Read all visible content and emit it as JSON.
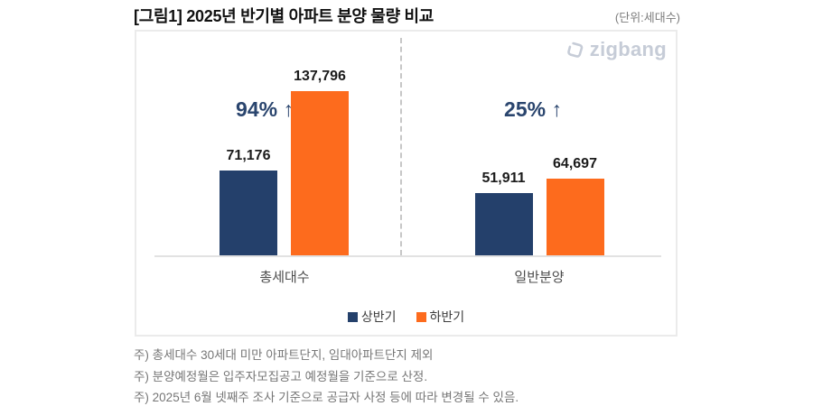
{
  "header": {
    "title": "[그림1] 2025년 반기별 아파트 분양 물량 비교",
    "unit_label": "(단위:세대수)"
  },
  "brand": {
    "logo_text": "zigbang"
  },
  "chart_data": {
    "type": "bar",
    "title": "2025년 반기별 아파트 분양 물량 비교",
    "unit": "세대수",
    "categories": [
      "총세대수",
      "일반분양"
    ],
    "series": [
      {
        "name": "상반기",
        "color": "#24406b",
        "values": [
          71176,
          51911
        ],
        "labels": [
          "71,176",
          "51,911"
        ]
      },
      {
        "name": "하반기",
        "color": "#fd6b1d",
        "values": [
          137796,
          64697
        ],
        "labels": [
          "137,796",
          "64,697"
        ]
      }
    ],
    "annotations": [
      {
        "category": "총세대수",
        "text": "94% ↑"
      },
      {
        "category": "일반분양",
        "text": "25% ↑"
      }
    ],
    "ylim": [
      0,
      150000
    ],
    "grid": false,
    "legend_position": "bottom-center"
  },
  "footnotes": [
    "주) 총세대수 30세대 미만 아파트단지, 임대아파트단지 제외",
    "주) 분양예정월은 입주자모집공고 예정월을 기준으로 산정.",
    "주) 2025년 6월 넷째주 조사 기준으로 공급자 사정 등에 따라 변경될 수 있음."
  ]
}
